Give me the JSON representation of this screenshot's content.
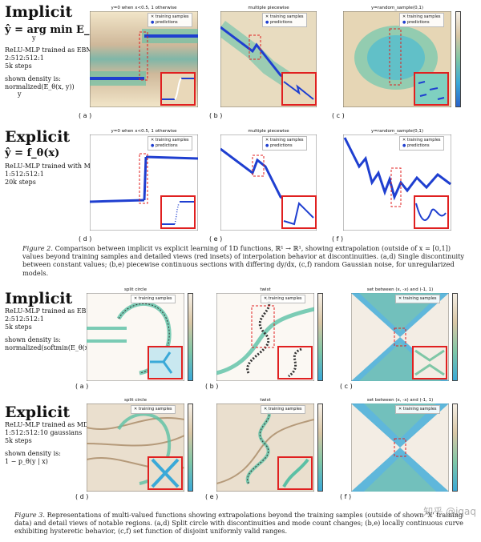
{
  "rows": [
    {
      "heading": "Implicit",
      "equation": "ŷ = arg min E_θ(x, y)",
      "equation_sub": "y",
      "trained": "ReLU-MLP trained as EBM",
      "arch": "2:512:512:1",
      "steps": "5k steps",
      "density_label": "shown density is:",
      "density_expr": "normalized(E_θ(x, y))",
      "density_sub": "y",
      "panels": [
        {
          "label": "( a )",
          "title": "y=0 when x<0.5, 1 otherwise",
          "legend": [
            "training samples",
            "predictions"
          ]
        },
        {
          "label": "( b )",
          "title": "multiple piecewise",
          "legend": [
            "training samples",
            "predictions"
          ]
        },
        {
          "label": "( c )",
          "title": "y=random_sample(0,1)",
          "legend": [
            "training samples",
            "predictions"
          ]
        }
      ]
    },
    {
      "heading": "Explicit",
      "equation": "ŷ = f_θ(x)",
      "trained": "ReLU-MLP trained with MSE",
      "arch": "1:512:512:1",
      "steps": "20k steps",
      "panels": [
        {
          "label": "( d )",
          "title": "y=0 when x<0.5, 1 otherwise",
          "legend": [
            "training samples",
            "predictions"
          ]
        },
        {
          "label": "( e )",
          "title": "multiple piecewise",
          "legend": [
            "training samples",
            "predictions"
          ]
        },
        {
          "label": "( f )",
          "title": "y=random_sample(0,1)",
          "legend": [
            "training samples",
            "predictions"
          ]
        }
      ]
    },
    {
      "heading": "Implicit",
      "trained": "ReLU-MLP trained as EBM",
      "arch": "2:512:512:1",
      "steps": "5k steps",
      "density_label": "shown density is:",
      "density_expr": "normalized(softmin(E_θ(x, y)))",
      "density_sub": "y",
      "panels": [
        {
          "label": "( a )",
          "title": "split circle",
          "legend": [
            "training samples"
          ]
        },
        {
          "label": "( b )",
          "title": "twist",
          "legend": [
            "training samples"
          ]
        },
        {
          "label": "( c )",
          "title": "set between (x, -x) and (-1, 1)",
          "legend": [
            "training samples"
          ]
        }
      ]
    },
    {
      "heading": "Explicit",
      "trained": "ReLU-MLP trained as MDN",
      "arch": "1:512:512:10 gaussians",
      "steps": "5k steps",
      "density_label": "shown density is:",
      "density_expr": "1 − p_θ(y | x)",
      "panels": [
        {
          "label": "( d )",
          "title": "split circle",
          "legend": [
            "training samples"
          ]
        },
        {
          "label": "( e )",
          "title": "twist",
          "legend": [
            "training samples"
          ]
        },
        {
          "label": "( f )",
          "title": "set between (x, -x) and (-1, 1)",
          "legend": [
            "training samples"
          ]
        }
      ]
    }
  ],
  "figure2_caption": {
    "label": "Figure 2.",
    "text": "Comparison between implicit vs explicit learning of 1D functions, ℝ¹ → ℝ¹, showing extrapolation (outside of x = [0,1]) values beyond training samples and detailed views (red insets) of interpolation behavior at discontinuities. (a,d) Single discontinuity between constant values; (b,e) piecewise continuous sections with differing dy/dx, (c,f) random Gaussian noise, for unregularized models."
  },
  "figure3_caption": {
    "label": "Figure 3.",
    "text": "Representations of multi-valued functions showing extrapolations beyond the training samples (outside of shown 'X' training data) and detail views of notable regions. (a,d) Split circle with discontinuities and mode count changes; (b,e) locally continuous curve exhibiting hysteretic behavior, (c,f) set function of disjoint uniformly valid ranges."
  },
  "watermark": "知乎 @jqaq",
  "colors": {
    "inset_border": "#e02020",
    "prediction": "#1f3fd0",
    "training": "#111111"
  }
}
